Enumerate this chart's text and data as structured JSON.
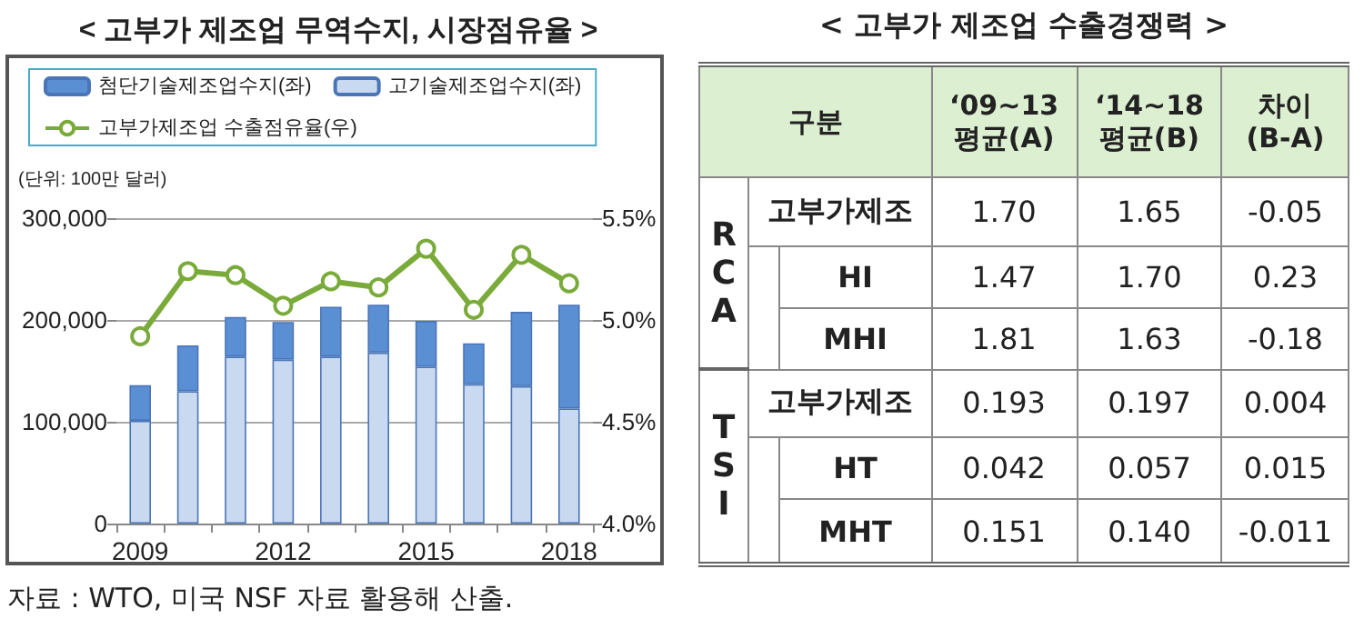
{
  "chart_data": [
    {
      "type": "bar",
      "title": "< 고부가 제조업 무역수지, 시장점유율 >",
      "categories": [
        "2009",
        null,
        null,
        "2012",
        null,
        null,
        "2015",
        null,
        null,
        "2018"
      ],
      "stacked": true,
      "series": [
        {
          "name": "고기술제조업수지(좌)",
          "color": "#c9d9ef",
          "values": [
            101000,
            130000,
            164000,
            161000,
            164000,
            168000,
            154000,
            137000,
            135000,
            113000
          ]
        },
        {
          "name": "첨단기술제조업수지(좌)",
          "color": "#5b8fd4",
          "values": [
            35000,
            45000,
            39000,
            37000,
            49000,
            47000,
            45000,
            40000,
            73000,
            102000
          ]
        },
        {
          "name": "고부가제조업 수출점유율(우)",
          "type": "line",
          "axis": "y2",
          "color": "#7aab3a",
          "values": [
            4.92,
            5.24,
            5.22,
            5.07,
            5.19,
            5.16,
            5.35,
            5.05,
            5.32,
            5.18
          ]
        }
      ],
      "ylim": [
        0,
        300000
      ],
      "yticks": [
        0,
        {
          "value": 100000,
          "label": "100,000"
        },
        {
          "value": 200000,
          "label": "200,000"
        },
        {
          "value": 300000,
          "label": "300,000"
        }
      ],
      "y2lim": [
        4.0,
        5.5
      ],
      "y2ticks": [
        {
          "value": 4.0,
          "label": "4.0%"
        },
        {
          "value": 4.5,
          "label": "4.5%"
        },
        {
          "value": 5.0,
          "label": "5.0%"
        },
        {
          "value": 5.5,
          "label": "5.5%"
        }
      ],
      "grid": "y",
      "legend": "top left",
      "marker": "circle",
      "line_style": "solid",
      "annotations": [
        "(단위: 100만 달러)",
        "자료 : WTO, 미국 NSF 자료 활용해 산출."
      ]
    },
    {
      "type": "other",
      "title": "< 고부가 제조업 수출경쟁력 >",
      "categories": [
        "구분",
        "‘09~13\n평균(A)",
        "‘14~18\n평균(B)",
        "차이\n(B-A)"
      ],
      "y_categories": [
        "고부가제조",
        "HI",
        "MHI",
        "고부가제조",
        "HT",
        "MHT"
      ],
      "cell_labels": [
        [
          "1.70",
          "1.65",
          "-0.05"
        ],
        [
          "1.47",
          "1.70",
          "0.23"
        ],
        [
          "1.81",
          "1.63",
          "-0.18"
        ],
        [
          "0.193",
          "0.197",
          "0.004"
        ],
        [
          "0.042",
          "0.057",
          "0.015"
        ],
        [
          "0.151",
          "0.140",
          "-0.011"
        ]
      ],
      "annotations": [
        "RCA",
        "TSI"
      ]
    }
  ]
}
